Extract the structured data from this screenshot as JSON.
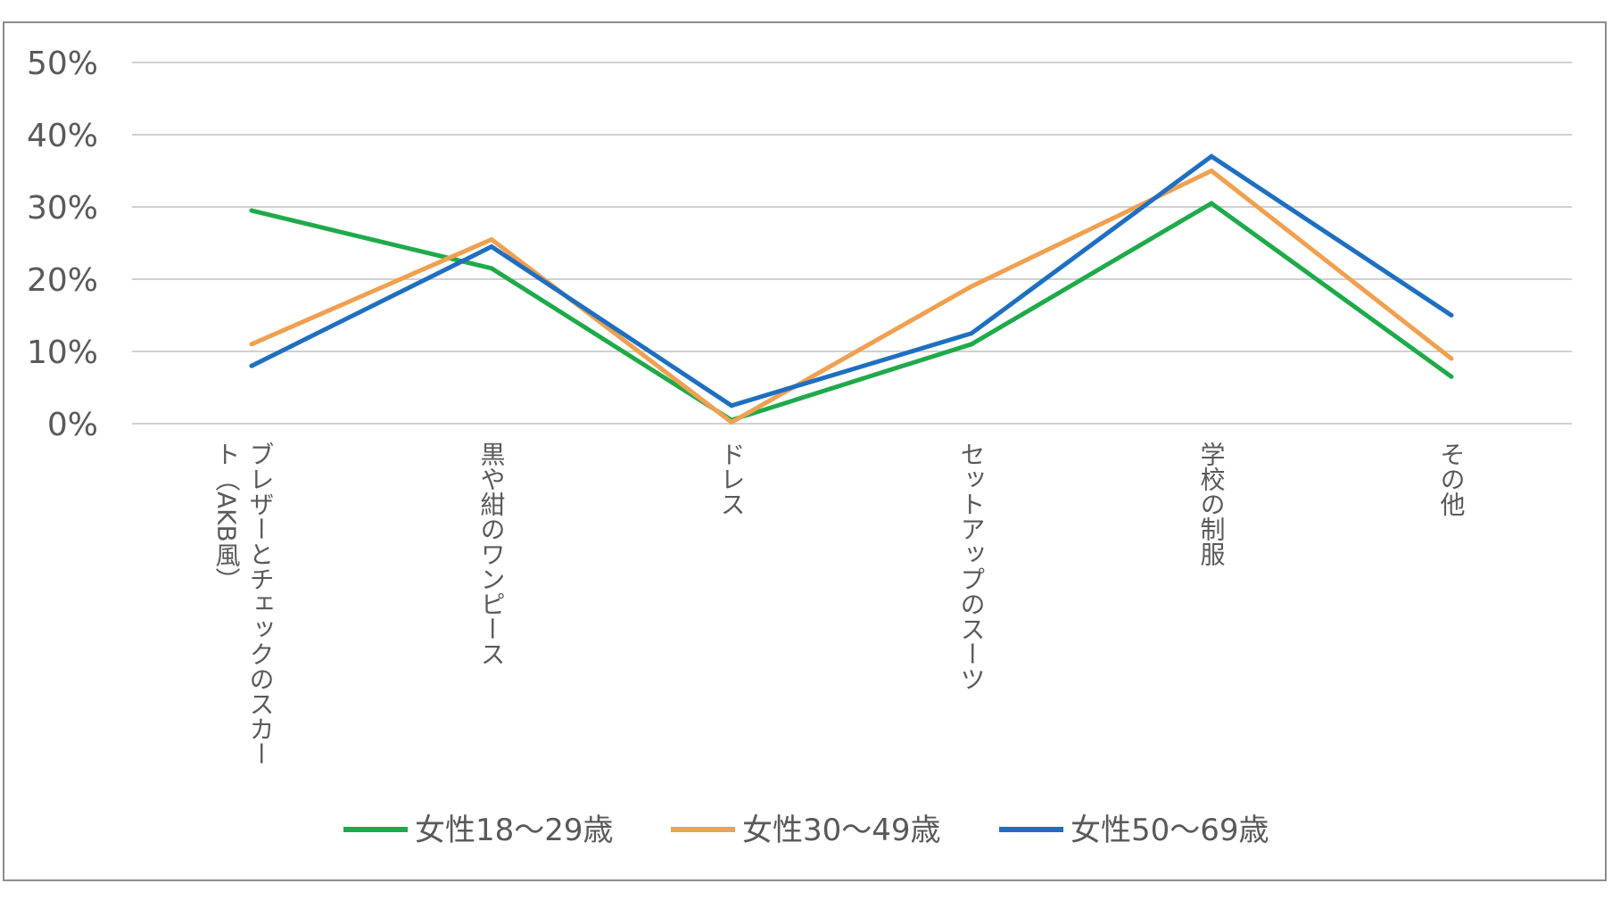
{
  "chart_data": {
    "type": "line",
    "title": "",
    "xlabel": "",
    "ylabel": "",
    "ylim": [
      0,
      50
    ],
    "yticks": [
      "0%",
      "10%",
      "20%",
      "30%",
      "40%",
      "50%"
    ],
    "grid": true,
    "legend_position": "bottom",
    "categories": [
      [
        "ブレザーとチェックのスカー",
        "ト（AKB風）"
      ],
      [
        "黒や紺のワンピース"
      ],
      [
        "ドレス"
      ],
      [
        "セットアップのスーツ"
      ],
      [
        "学校の制服"
      ],
      [
        "その他"
      ]
    ],
    "series": [
      {
        "name": "女性18〜29歳",
        "color": "#1faa4a",
        "values": [
          29.5,
          21.5,
          0.5,
          11.0,
          30.5,
          6.5
        ]
      },
      {
        "name": "女性30〜49歳",
        "color": "#f0a050",
        "values": [
          11.0,
          25.5,
          0.2,
          19.0,
          35.0,
          9.0
        ]
      },
      {
        "name": "女性50〜69歳",
        "color": "#1f6fc0",
        "values": [
          8.0,
          24.5,
          2.5,
          12.5,
          37.0,
          15.0
        ]
      }
    ]
  }
}
